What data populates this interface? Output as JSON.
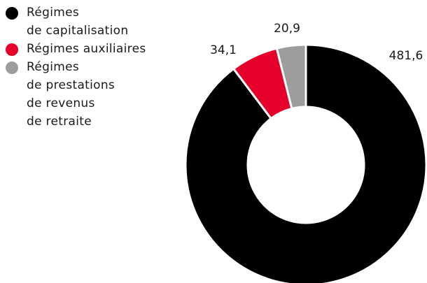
{
  "chart_data": {
    "type": "pie",
    "variant": "donut",
    "title": "",
    "series": [
      {
        "name": "Régimes\nde capitalisation",
        "value": 481.6,
        "value_label": "481,6",
        "color": "#000000"
      },
      {
        "name": "Régimes auxiliaires",
        "value": 34.1,
        "value_label": "34,1",
        "color": "#e4002b"
      },
      {
        "name": "Régimes\nde prestations\nde revenus\nde retraite",
        "value": 20.9,
        "value_label": "20,9",
        "color": "#9d9d9c"
      }
    ],
    "legend_position": "top-left",
    "start_angle": "12 o'clock",
    "direction": "clockwise"
  }
}
